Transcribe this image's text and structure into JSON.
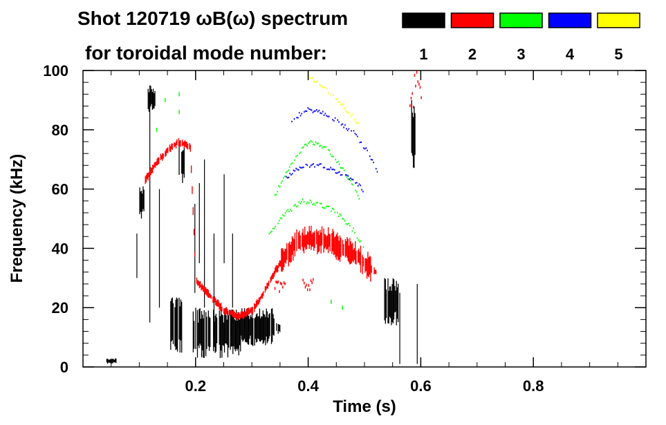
{
  "chart_data": {
    "type": "scatter",
    "title_line1": "Shot 120719 ωB(ω) spectrum",
    "title_line2": "for toroidal mode number:",
    "xlabel": "Time (s)",
    "ylabel": "Frequency (kHz)",
    "xlim": [
      0.0,
      1.0
    ],
    "ylim": [
      0,
      100
    ],
    "xticks": [
      0.2,
      0.4,
      0.6,
      0.8
    ],
    "xtick_labels": [
      "0.2",
      "0.4",
      "0.6",
      "0.8"
    ],
    "yticks": [
      0,
      20,
      40,
      60,
      80,
      100
    ],
    "ytick_labels": [
      "0",
      "20",
      "40",
      "60",
      "80",
      "100"
    ],
    "legend": [
      {
        "label": "1",
        "color": "#000000"
      },
      {
        "label": "2",
        "color": "#ff0000"
      },
      {
        "label": "3",
        "color": "#00ff00"
      },
      {
        "label": "4",
        "color": "#0000ff"
      },
      {
        "label": "5",
        "color": "#ffff00"
      }
    ],
    "series": [
      {
        "name": "n=1",
        "color": "#000000",
        "blobs": [
          {
            "t": [
              0.1,
              0.11
            ],
            "f": [
              50,
              62
            ]
          },
          {
            "t": [
              0.115,
              0.128
            ],
            "f": [
              86,
              95
            ]
          },
          {
            "t": [
              0.155,
              0.175
            ],
            "f": [
              4,
              25
            ]
          },
          {
            "t": [
              0.17,
              0.18
            ],
            "f": [
              62,
              76
            ]
          },
          {
            "t": [
              0.195,
              0.28
            ],
            "f": [
              3,
              20
            ]
          },
          {
            "t": [
              0.28,
              0.34
            ],
            "f": [
              7,
              20
            ]
          },
          {
            "t": [
              0.34,
              0.35
            ],
            "f": [
              11,
              15
            ]
          },
          {
            "t": [
              0.535,
              0.56
            ],
            "f": [
              14,
              30
            ]
          },
          {
            "t": [
              0.58,
              0.59
            ],
            "f": [
              65,
              90
            ]
          },
          {
            "t": [
              0.04,
              0.06
            ],
            "f": [
              1,
              3
            ]
          }
        ],
        "streaks": [
          {
            "t": 0.095,
            "f": [
              30,
              45
            ]
          },
          {
            "t": 0.118,
            "f": [
              15,
              95
            ]
          },
          {
            "t": 0.135,
            "f": [
              20,
              60
            ]
          },
          {
            "t": 0.198,
            "f": [
              25,
              55
            ]
          },
          {
            "t": 0.206,
            "f": [
              35,
              62
            ]
          },
          {
            "t": 0.215,
            "f": [
              20,
              70
            ]
          },
          {
            "t": 0.232,
            "f": [
              10,
              45
            ]
          },
          {
            "t": 0.25,
            "f": [
              35,
              65
            ]
          },
          {
            "t": 0.265,
            "f": [
              20,
              45
            ]
          },
          {
            "t": 0.562,
            "f": [
              1,
              25
            ]
          },
          {
            "t": 0.593,
            "f": [
              1,
              28
            ]
          }
        ]
      },
      {
        "name": "n=2",
        "color": "#ff0000",
        "curve": [
          [
            0.11,
            63
          ],
          [
            0.13,
            69
          ],
          [
            0.15,
            73
          ],
          [
            0.17,
            76
          ],
          [
            0.19,
            74
          ],
          [
            0.2,
            29
          ],
          [
            0.22,
            25
          ],
          [
            0.25,
            19
          ],
          [
            0.275,
            17
          ],
          [
            0.3,
            19
          ],
          [
            0.32,
            25
          ],
          [
            0.34,
            32
          ],
          [
            0.36,
            38
          ],
          [
            0.38,
            42
          ],
          [
            0.4,
            43
          ],
          [
            0.42,
            43
          ],
          [
            0.44,
            42
          ],
          [
            0.46,
            40
          ],
          [
            0.48,
            38
          ],
          [
            0.5,
            35
          ],
          [
            0.52,
            32
          ]
        ],
        "band": 5,
        "extras": [
          {
            "t": [
              0.58,
              0.6
            ],
            "f": [
              85,
              100
            ]
          },
          {
            "t": [
              0.34,
              0.36
            ],
            "f": [
              24,
              28
            ]
          },
          {
            "t": [
              0.39,
              0.41
            ],
            "f": [
              25,
              29
            ]
          }
        ]
      },
      {
        "name": "n=3",
        "color": "#00ff00",
        "arches": [
          [
            [
              0.33,
              45
            ],
            [
              0.36,
              52
            ],
            [
              0.39,
              56
            ],
            [
              0.42,
              55
            ],
            [
              0.45,
              52
            ],
            [
              0.48,
              46
            ],
            [
              0.5,
              40
            ]
          ],
          [
            [
              0.34,
              58
            ],
            [
              0.37,
              69
            ],
            [
              0.4,
              76
            ],
            [
              0.43,
              74
            ],
            [
              0.46,
              67
            ],
            [
              0.49,
              57
            ]
          ]
        ],
        "dots": [
          [
            0.13,
            80
          ],
          [
            0.145,
            90
          ],
          [
            0.17,
            92
          ],
          [
            0.17,
            86
          ],
          [
            0.44,
            22
          ],
          [
            0.46,
            20
          ]
        ]
      },
      {
        "name": "n=4",
        "color": "#0000ff",
        "arches": [
          [
            [
              0.36,
              64
            ],
            [
              0.39,
              68
            ],
            [
              0.42,
              68
            ],
            [
              0.45,
              66
            ],
            [
              0.48,
              63
            ],
            [
              0.5,
              59
            ]
          ],
          [
            [
              0.37,
              83
            ],
            [
              0.395,
              87
            ],
            [
              0.42,
              86
            ],
            [
              0.45,
              83
            ],
            [
              0.48,
              79
            ],
            [
              0.51,
              71
            ],
            [
              0.525,
              64
            ]
          ]
        ]
      },
      {
        "name": "n=5",
        "color": "#ffff00",
        "arches": [
          [
            [
              0.4,
              98
            ],
            [
              0.43,
              94
            ],
            [
              0.46,
              88
            ],
            [
              0.49,
              82
            ]
          ]
        ]
      }
    ]
  }
}
